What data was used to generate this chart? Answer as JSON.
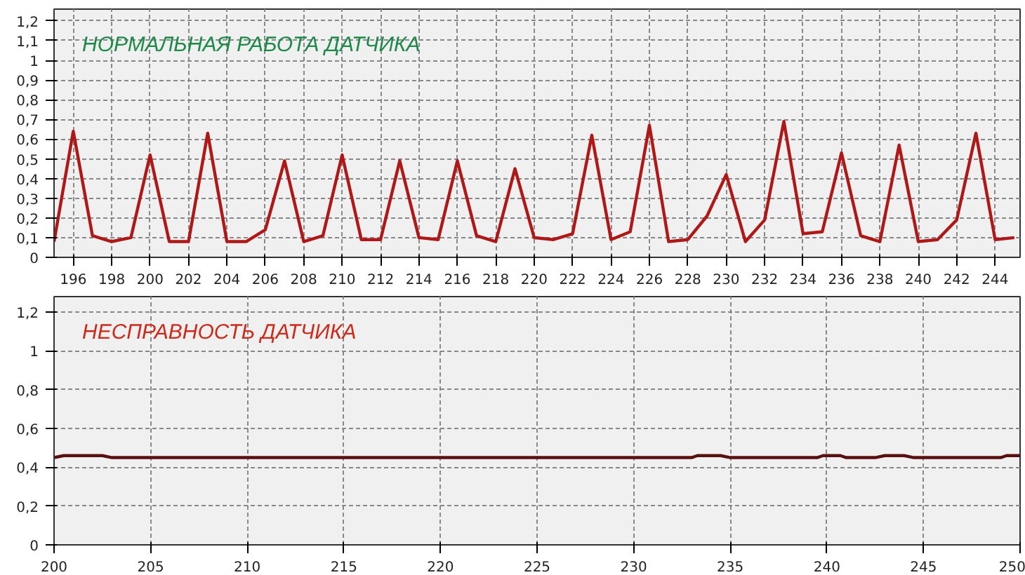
{
  "chart_data": [
    {
      "type": "line",
      "title": "НОРМАЛЬНАЯ РАБОТА ДАТЧИКА",
      "x": [
        195,
        196,
        197,
        198,
        199,
        200,
        201,
        202,
        203,
        204,
        205,
        206,
        207,
        208,
        209,
        210,
        211,
        212,
        213,
        214,
        215,
        216,
        217,
        218,
        219,
        220,
        221,
        222,
        223,
        224,
        225,
        226,
        227,
        228,
        229,
        230,
        231,
        232,
        233,
        234,
        235,
        236,
        237,
        238,
        239,
        240,
        241,
        242,
        243,
        244,
        245
      ],
      "series": [
        {
          "color": "#b01818",
          "values": [
            0.08,
            0.64,
            0.11,
            0.08,
            0.1,
            0.52,
            0.08,
            0.08,
            0.63,
            0.08,
            0.08,
            0.14,
            0.49,
            0.08,
            0.11,
            0.52,
            0.09,
            0.09,
            0.49,
            0.1,
            0.09,
            0.49,
            0.11,
            0.08,
            0.45,
            0.1,
            0.09,
            0.12,
            0.62,
            0.09,
            0.13,
            0.67,
            0.08,
            0.09,
            0.21,
            0.42,
            0.08,
            0.19,
            0.69,
            0.12,
            0.13,
            0.53,
            0.11,
            0.08,
            0.57,
            0.08,
            0.09,
            0.19,
            0.63,
            0.09,
            0.1
          ]
        }
      ],
      "xlim": [
        195,
        245.3
      ],
      "ylim": [
        0,
        1.26
      ],
      "xticks": [
        196,
        198,
        200,
        202,
        204,
        206,
        208,
        210,
        212,
        214,
        216,
        218,
        220,
        222,
        224,
        226,
        228,
        230,
        232,
        234,
        236,
        238,
        240,
        242,
        244
      ],
      "yticks": [
        0,
        {
          "value": 0.1,
          "label": "0,1"
        },
        {
          "value": 0.2,
          "label": "0,2"
        },
        {
          "value": 0.3,
          "label": "0,3"
        },
        {
          "value": 0.4,
          "label": "0,4"
        },
        {
          "value": 0.5,
          "label": "0,5"
        },
        {
          "value": 0.6,
          "label": "0,6"
        },
        {
          "value": 0.7,
          "label": "0,7"
        },
        {
          "value": 0.8,
          "label": "0,8"
        },
        {
          "value": 0.9,
          "label": "0,9"
        },
        1,
        {
          "value": 1.1,
          "label": "1,1"
        },
        {
          "value": 1.2,
          "label": "1,2"
        }
      ],
      "grid": true
    },
    {
      "type": "line",
      "title": "НЕСПРАВНОСТЬ ДАТЧИКА",
      "x": [
        200,
        200.5,
        202.5,
        203,
        233,
        233.3,
        234.5,
        235,
        239.5,
        239.8,
        240.7,
        241,
        242.5,
        243,
        244,
        244.5,
        249,
        249.3,
        250
      ],
      "series": [
        {
          "color": "#5a1010",
          "values": [
            0.45,
            0.46,
            0.46,
            0.45,
            0.45,
            0.46,
            0.46,
            0.45,
            0.45,
            0.46,
            0.46,
            0.45,
            0.45,
            0.46,
            0.46,
            0.45,
            0.45,
            0.46,
            0.46
          ]
        }
      ],
      "xlim": [
        200,
        250
      ],
      "ylim": [
        0,
        1.28
      ],
      "xticks": [
        200,
        205,
        210,
        215,
        220,
        225,
        230,
        235,
        240,
        245,
        250
      ],
      "yticks": [
        0,
        {
          "value": 0.2,
          "label": "0,2"
        },
        {
          "value": 0.4,
          "label": "0,4"
        },
        {
          "value": 0.6,
          "label": "0,6"
        },
        {
          "value": 0.8,
          "label": "0,8"
        },
        1,
        {
          "value": 1.2,
          "label": "1,2"
        }
      ],
      "grid": true
    }
  ]
}
